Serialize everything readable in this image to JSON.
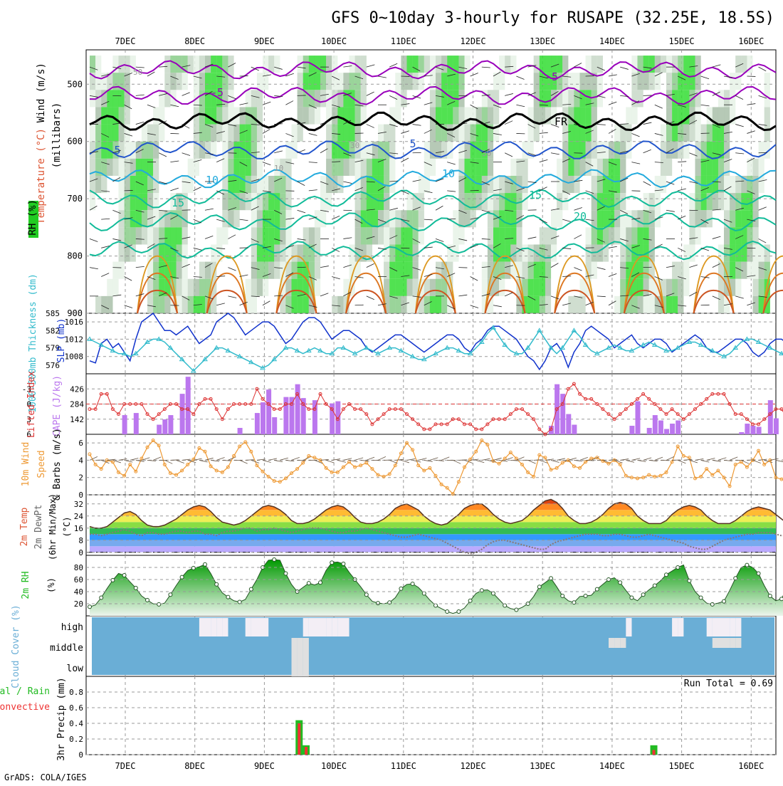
{
  "title": "GFS 0~10day 3-hourly for RUSAPE (32.25E, 18.5S)",
  "footer": "GrADS: COLA/IGES",
  "run_total_label": "Run Total = 0.69",
  "date_labels": [
    "7DEC",
    "8DEC",
    "9DEC",
    "10DEC",
    "11DEC",
    "12DEC",
    "13DEC",
    "14DEC",
    "15DEC",
    "16DEC"
  ],
  "colors": {
    "rh_green": "#22cc22",
    "temp_purple": "#9900bb",
    "temp_blue": "#2255cc",
    "temp_cyan": "#22aadd",
    "temp_teal": "#11bb99",
    "temp_orange": "#dd9922",
    "slp": "#1133cc",
    "thickness": "#33bbcc",
    "cape": "#bb77ee",
    "li": "#dd3333",
    "wind10": "#ee9933",
    "rh2m": "#22bb22",
    "cloud": "#6aaed6",
    "precip_total": "#22bb22",
    "precip_conv": "#ee3333"
  },
  "chart_data": [
    {
      "type": "heatmap",
      "panel": "upper-air",
      "ylabel_parts": [
        "Wind (m/s)",
        "Temperature (°C)",
        "RH (%)",
        "(millibars)"
      ],
      "y_ticks": [
        "500",
        "600",
        "700",
        "800",
        "900"
      ],
      "ylim": [
        900,
        440
      ],
      "isotherm_labels": [
        "-5",
        "-5",
        "5",
        "5",
        "10",
        "10",
        "15",
        "15",
        "20",
        "FR"
      ],
      "rh_labels": [
        "50",
        "30",
        "30",
        "10"
      ],
      "grid": true
    },
    {
      "type": "line",
      "panel": "slp-thickness",
      "ylabel_left": "1000-500mb Thickness (dm)",
      "ylabel_right": "SLP (mb)",
      "left_ticks": [
        "576",
        "579",
        "582",
        "585"
      ],
      "right_ticks": [
        "1008",
        "1012",
        "1016"
      ],
      "ylim_thickness": [
        574.5,
        585
      ],
      "ylim_slp": [
        1004,
        1018
      ],
      "series": [
        {
          "values": [
            1007,
            1006.5,
            1011,
            1012,
            1010,
            1011,
            1009,
            1007,
            1012,
            1016,
            1017,
            1018,
            1016,
            1014,
            1014,
            1013,
            1014,
            1015,
            1013,
            1011,
            1012,
            1013,
            1016,
            1017,
            1018,
            1017,
            1015,
            1013,
            1014,
            1015,
            1016,
            1016,
            1015,
            1013,
            1011,
            1012,
            1014,
            1016,
            1017,
            1017,
            1016,
            1014,
            1012,
            1013,
            1014,
            1014,
            1013,
            1012,
            1010,
            1009,
            1010,
            1011,
            1012,
            1013,
            1013,
            1012,
            1011,
            1010,
            1009,
            1010,
            1011,
            1012,
            1013,
            1013,
            1012,
            1010,
            1009,
            1011,
            1012,
            1014,
            1015,
            1015,
            1014,
            1013,
            1012,
            1010,
            1008,
            1007,
            1005,
            1007,
            1010,
            1011,
            1009,
            1005.5,
            1009,
            1011,
            1014,
            1015,
            1014,
            1013,
            1012,
            1010,
            1011,
            1012,
            1013,
            1011,
            1010,
            1011,
            1012,
            1012,
            1011,
            1009,
            1010,
            1011,
            1012,
            1013,
            1012,
            1010,
            1009,
            1009,
            1010,
            1011,
            1012,
            1012,
            1011,
            1009,
            1008,
            1009,
            1011,
            1012,
            1012,
            1011,
            1010,
            1009,
            1010,
            1011
          ]
        },
        {
          "values": [
            580.5,
            580,
            579.5,
            579,
            578.5,
            578,
            578,
            577.5,
            578,
            579,
            580,
            580.5,
            580.5,
            580,
            579,
            578,
            577,
            576,
            575,
            576,
            577,
            578,
            579,
            579,
            578.5,
            578,
            577.5,
            577,
            576.5,
            576,
            575.5,
            576,
            577,
            578,
            579,
            579,
            578.5,
            578,
            578.5,
            579,
            578.5,
            578,
            578,
            579,
            579,
            578.5,
            578,
            578.5,
            579,
            578.5,
            578,
            578.5,
            579,
            579,
            578.5,
            578,
            577.5,
            577,
            577,
            577.5,
            578,
            578.5,
            579,
            579,
            578.5,
            578,
            578,
            579,
            580,
            581.5,
            582.5,
            581,
            579.5,
            578.5,
            578,
            578,
            579,
            580.5,
            582,
            580.5,
            579,
            578,
            579,
            580.5,
            582,
            581,
            579.5,
            578.5,
            578,
            578.5,
            579,
            579.5,
            579,
            578.5,
            578.5,
            579,
            579.5,
            580,
            579.5,
            579,
            578.5,
            578.5,
            579,
            579.5,
            580,
            580,
            579.5,
            579,
            578.5,
            578,
            577.5,
            578,
            579,
            580,
            580.5,
            580.5,
            580,
            579.5,
            579,
            578.5,
            578,
            577.5,
            577.5,
            578,
            579,
            580,
            580.5
          ]
        }
      ]
    },
    {
      "type": "bar",
      "panel": "cape-li",
      "ylabel_left": "Lifted Index",
      "ylabel_right": "CAPE (J/kg)",
      "left_ticks": [
        "-3",
        "0",
        "3",
        "6"
      ],
      "right_ticks": [
        "426",
        "284",
        "142"
      ],
      "ylim_li": [
        6,
        -6
      ],
      "ylim_cape": [
        0,
        568
      ],
      "cape_values": [
        0,
        0,
        0,
        0,
        0,
        0,
        0,
        0,
        0,
        0,
        0,
        0,
        0,
        0,
        0,
        0,
        0,
        0,
        0,
        0,
        0,
        0,
        0,
        0,
        0,
        0,
        0,
        0,
        0,
        0,
        0,
        0,
        0,
        0,
        0,
        0,
        0,
        0,
        0,
        0,
        0,
        0,
        0,
        0,
        0,
        0,
        0,
        0,
        0,
        0,
        0,
        0,
        0,
        0,
        0,
        0,
        0,
        0,
        0,
        0,
        0,
        0,
        0,
        0,
        0,
        0,
        0,
        0,
        0,
        0,
        0,
        0,
        0,
        0,
        0,
        0,
        0,
        0,
        0,
        0,
        0,
        0,
        0,
        0,
        0,
        0,
        0,
        0,
        0,
        0,
        0,
        0,
        0,
        0,
        0,
        0,
        0,
        0,
        0,
        0,
        0,
        0,
        0,
        0,
        0,
        0,
        0,
        0,
        0,
        0,
        0,
        0,
        0,
        0,
        0,
        0,
        0,
        0,
        0,
        0,
        0,
        0,
        0,
        0,
        0,
        0
      ],
      "li_values": [
        1,
        1,
        -2,
        -2,
        1,
        2,
        0,
        0,
        0,
        0,
        2,
        3,
        2,
        1,
        0,
        0,
        1,
        1,
        2,
        0,
        -1,
        -1,
        1,
        3,
        1,
        0,
        0,
        0,
        0,
        -3,
        -1,
        0,
        1,
        1,
        0,
        0,
        -2,
        0,
        1,
        1,
        -2,
        0,
        1,
        3,
        1,
        0,
        1,
        1,
        2,
        4,
        3,
        2,
        1,
        1,
        1,
        2,
        3,
        4,
        5,
        5,
        4,
        4,
        4,
        3,
        3,
        4,
        4,
        5,
        5,
        4,
        3,
        3,
        3,
        2,
        1,
        1,
        2,
        3,
        5,
        6,
        5,
        1,
        0,
        -3,
        -4,
        -2,
        -1,
        -1,
        0,
        1,
        2,
        3,
        2,
        1,
        0,
        -1,
        -2,
        -1,
        0,
        1,
        2,
        1,
        2,
        3,
        2,
        1,
        0,
        -1,
        -2,
        -2,
        -2,
        0,
        2,
        2,
        3,
        4,
        4,
        3,
        2,
        1,
        1,
        3,
        3,
        2,
        1,
        0,
        -1
      ],
      "grid": true
    },
    {
      "type": "line",
      "panel": "wind10m",
      "ylabel": "10m Wind Speed & Barbs (m/s)",
      "y_ticks": [
        "0",
        "2",
        "4",
        "6"
      ],
      "ylim": [
        0,
        7
      ],
      "series": [
        {
          "values": [
            4.7,
            3.5,
            3.0,
            4.0,
            3.8,
            2.6,
            2.2,
            3.5,
            2.7,
            4.2,
            5.5,
            6.3,
            5.7,
            3.5,
            2.5,
            2.3,
            2.8,
            3.5,
            4.1,
            5.4,
            5.0,
            3.3,
            2.8,
            2.6,
            3.2,
            4.5,
            5.6,
            6.1,
            5.0,
            3.4,
            2.7,
            2.1,
            1.6,
            1.5,
            1.9,
            2.5,
            3.0,
            3.7,
            4.5,
            4.3,
            4.0,
            3.1,
            2.6,
            2.6,
            3.2,
            3.8,
            3.2,
            3.4,
            3.7,
            3.0,
            2.3,
            2.1,
            2.4,
            3.4,
            4.8,
            6.0,
            5.2,
            3.4,
            2.8,
            3.1,
            2.2,
            1.2,
            0.8,
            0.1,
            1.5,
            3.2,
            4.1,
            5.0,
            6.3,
            5.8,
            3.9,
            3.6,
            4.2,
            4.9,
            4.2,
            3.5,
            2.6,
            2.1,
            4.6,
            4.3,
            2.9,
            3.1,
            3.7,
            4.0,
            3.3,
            3.1,
            3.8,
            4.2,
            4.3,
            3.9,
            3.6,
            4.0,
            3.5,
            2.2,
            2.0,
            1.9,
            2.0,
            2.3,
            2.1,
            2.2,
            2.6,
            3.8,
            5.6,
            4.5,
            4.3,
            1.9,
            2.1,
            3.0,
            2.3,
            2.8,
            2.0,
            1.0,
            3.5,
            3.8,
            3.2,
            4.0,
            5.1,
            3.5,
            4.0,
            2.0,
            1.8,
            1.7,
            2.2
          ]
        }
      ],
      "grid": true
    },
    {
      "type": "area",
      "panel": "temp2m",
      "ylabel": "2m Temp 2m DewPt (6hr Min/Max) (°C)",
      "y_ticks": [
        "0",
        "8",
        "16",
        "24",
        "32"
      ],
      "ylim": [
        -2,
        38
      ],
      "series": [
        {
          "values": [
            17,
            16,
            16,
            17,
            20,
            23,
            26,
            27,
            25,
            21,
            18,
            17,
            17,
            18,
            20,
            22,
            25,
            28,
            30,
            31,
            30,
            27,
            23,
            20,
            19,
            18,
            19,
            21,
            24,
            27,
            30,
            31,
            30,
            28,
            25,
            21,
            19,
            19,
            20,
            22,
            25,
            28,
            30,
            31,
            30,
            27,
            23,
            20,
            19,
            19,
            20,
            22,
            25,
            29,
            31,
            32,
            30,
            28,
            24,
            21,
            19,
            18,
            19,
            22,
            25,
            29,
            31,
            32,
            32,
            29,
            25,
            22,
            20,
            19,
            20,
            21,
            24,
            28,
            31,
            34,
            35,
            33,
            29,
            24,
            21,
            19,
            19,
            20,
            22,
            25,
            29,
            32,
            33,
            32,
            29,
            24,
            21,
            19,
            19,
            19,
            21,
            25,
            28,
            30,
            31,
            30,
            28,
            24,
            21,
            19,
            19,
            19,
            21,
            24,
            27,
            29,
            30,
            29,
            28,
            25,
            22,
            19,
            19,
            21
          ]
        },
        {
          "values": [
            12,
            12,
            11,
            12,
            13,
            14,
            15,
            14,
            12,
            11,
            13,
            13,
            12,
            12,
            13,
            14,
            14,
            13,
            14,
            14,
            12,
            12,
            11,
            13,
            14,
            14,
            15,
            16,
            16,
            14,
            15,
            15,
            16,
            15,
            14,
            13,
            14,
            15,
            16,
            16,
            16,
            15,
            14,
            13,
            13,
            14,
            14,
            15,
            16,
            15,
            14,
            13,
            12,
            11,
            10,
            10,
            11,
            12,
            11,
            10,
            9,
            8,
            6,
            4,
            2,
            0,
            -1,
            0,
            2,
            5,
            7,
            8,
            8,
            7,
            6,
            5,
            4,
            3,
            2,
            2,
            5,
            7,
            8,
            9,
            10,
            11,
            12,
            12,
            12,
            11,
            11,
            12,
            12,
            11,
            10,
            10,
            11,
            12,
            11,
            10,
            9,
            8,
            7,
            6,
            4,
            3,
            2,
            2,
            4,
            6,
            8,
            9,
            10,
            11,
            12,
            12,
            13,
            13,
            13,
            12,
            11,
            11,
            13,
            15,
            15
          ]
        }
      ],
      "grid": true
    },
    {
      "type": "area",
      "panel": "rh2m",
      "ylabel": "2m RH (%)",
      "y_ticks": [
        "20",
        "40",
        "60",
        "80"
      ],
      "ylim": [
        0,
        100
      ],
      "series": [
        {
          "values": [
            15,
            18,
            30,
            45,
            59,
            70,
            67,
            56,
            46,
            33,
            26,
            20,
            19,
            21,
            35,
            50,
            64,
            75,
            79,
            81,
            85,
            70,
            52,
            38,
            31,
            25,
            23,
            27,
            44,
            60,
            80,
            92,
            93,
            92,
            70,
            52,
            40,
            47,
            54,
            51,
            55,
            75,
            88,
            89,
            86,
            72,
            60,
            48,
            35,
            24,
            21,
            20,
            22,
            30,
            45,
            52,
            53,
            47,
            37,
            26,
            17,
            12,
            7,
            4,
            7,
            13,
            25,
            37,
            42,
            43,
            37,
            27,
            17,
            12,
            10,
            14,
            20,
            32,
            48,
            55,
            62,
            48,
            33,
            25,
            22,
            32,
            33,
            34,
            44,
            52,
            60,
            63,
            55,
            42,
            30,
            25,
            35,
            43,
            50,
            58,
            68,
            74,
            80,
            84,
            58,
            40,
            30,
            21,
            19,
            21,
            24,
            42,
            62,
            80,
            84,
            80,
            70,
            50,
            33,
            25,
            28,
            48,
            63,
            64,
            60
          ]
        }
      ],
      "grid": true
    },
    {
      "type": "heatmap",
      "panel": "cloud",
      "ylabel": "Cloud Cover (%)",
      "row_labels": [
        "high",
        "middle",
        "low"
      ]
    },
    {
      "type": "bar",
      "panel": "precip",
      "ylabel": "3hr Precip (mm)",
      "legend": [
        "Total / Rain",
        "Convective"
      ],
      "y_ticks": [
        "0",
        "0.2",
        "0.4",
        "0.6",
        "0.8"
      ],
      "ylim": [
        0,
        1.0
      ],
      "series": [
        {
          "name": "Total / Rain",
          "x": [
            9.5,
            9.6,
            14.6
          ],
          "values": [
            0.44,
            0.12,
            0.12
          ]
        },
        {
          "name": "Convective",
          "x": [
            9.5,
            9.6,
            14.6
          ],
          "values": [
            0.4,
            0.1,
            0.06
          ]
        }
      ],
      "grid": true
    }
  ]
}
